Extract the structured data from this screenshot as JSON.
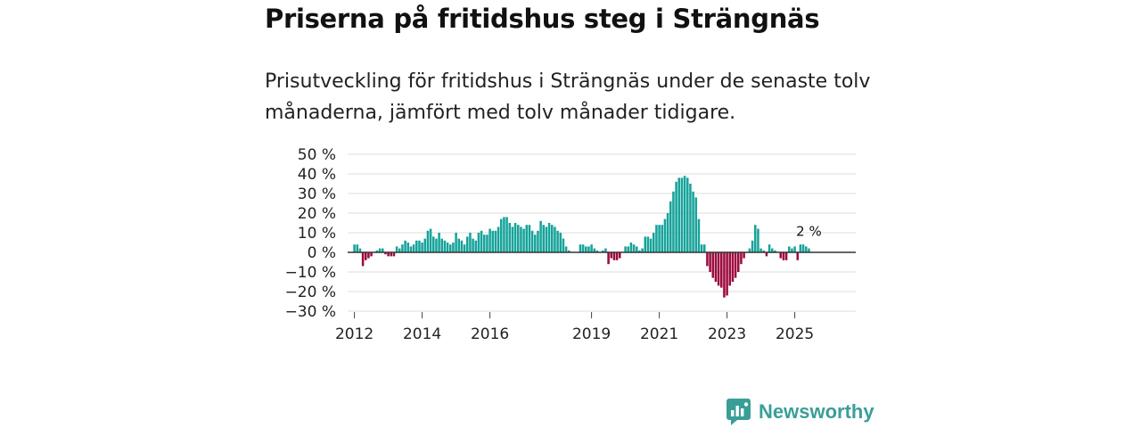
{
  "title": "Priserna på fritidshus steg i Strängnäs",
  "subtitle": "Prisutveckling för fritidshus i Strängnäs under de senaste tolv månaderna, jämfört med tolv månader tidigare.",
  "brand": {
    "name": "Newsworthy",
    "icon": "newsworthy-logo-icon"
  },
  "colors": {
    "positive": "#16a39a",
    "negative": "#9c0a3e",
    "grid": "#dddddd",
    "zero_line": "#333333",
    "brand": "#3a9e98"
  },
  "chart_data": {
    "type": "bar",
    "title": "Priserna på fritidshus steg i Strängnäs",
    "ylabel": "",
    "xlabel": "",
    "ylim": [
      -30,
      50
    ],
    "y_ticks": [
      50,
      40,
      30,
      20,
      10,
      0,
      -10,
      -20,
      -30
    ],
    "y_tick_labels": [
      "50 %",
      "40 %",
      "30 %",
      "20 %",
      "10 %",
      "0 %",
      "−10 %",
      "−20 %",
      "−30 %"
    ],
    "x_tick_labels": [
      {
        "label": "2012",
        "year": 2012
      },
      {
        "label": "2014",
        "year": 2014
      },
      {
        "label": "2016",
        "year": 2016
      },
      {
        "label": "2019",
        "year": 2019
      },
      {
        "label": "2021",
        "year": 2021
      },
      {
        "label": "2023",
        "year": 2023
      },
      {
        "label": "2025",
        "year": 2025
      }
    ],
    "x_start": 2011.8,
    "x_end": 2026.8,
    "start_year": 2012,
    "bars_per_year": 12,
    "unit": "%",
    "end_label": "2 %",
    "values": [
      4,
      4,
      2,
      -7,
      -4,
      -3,
      -2,
      0,
      1,
      2,
      2,
      -1,
      -2,
      -2,
      -2,
      3,
      2,
      4,
      6,
      5,
      3,
      4,
      6,
      6,
      5,
      7,
      11,
      12,
      8,
      7,
      10,
      7,
      6,
      5,
      4,
      5,
      10,
      7,
      6,
      4,
      8,
      10,
      7,
      6,
      10,
      11,
      9,
      9,
      12,
      11,
      11,
      13,
      17,
      18,
      18,
      15,
      13,
      15,
      14,
      13,
      12,
      14,
      14,
      11,
      9,
      11,
      16,
      14,
      13,
      15,
      14,
      13,
      11,
      10,
      7,
      3,
      1,
      0,
      0,
      0,
      4,
      4,
      3,
      3,
      4,
      2,
      1,
      0,
      1,
      2,
      -6,
      -3,
      -4,
      -4,
      -3,
      0,
      3,
      3,
      5,
      4,
      3,
      1,
      2,
      8,
      8,
      7,
      10,
      14,
      14,
      14,
      17,
      20,
      26,
      31,
      36,
      38,
      38,
      39,
      38,
      35,
      31,
      28,
      17,
      4,
      4,
      -7,
      -10,
      -13,
      -15,
      -17,
      -18,
      -23,
      -22,
      -17,
      -15,
      -13,
      -10,
      -6,
      -3,
      0,
      2,
      6,
      14,
      12,
      2,
      1,
      -2,
      4,
      2,
      1,
      0,
      -3,
      -4,
      -4,
      3,
      2,
      3,
      -4,
      4,
      4,
      3,
      2
    ]
  }
}
